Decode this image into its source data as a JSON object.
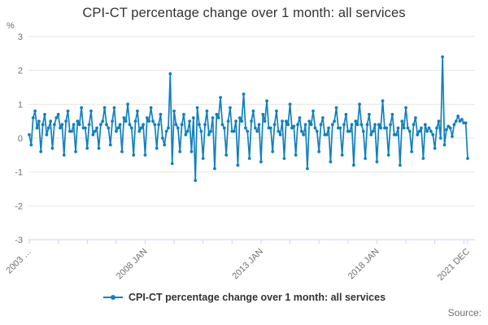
{
  "title": "CPI-CT percentage change over 1 month: all services",
  "y_axis": {
    "unit": "%",
    "tick_labels": [
      "3",
      "2",
      "1",
      "0",
      "-1",
      "-2",
      "-3"
    ]
  },
  "x_axis": {
    "visible_labels": [
      "2003 …",
      "2008 JAN",
      "2013 JAN",
      "2018 JAN",
      "2021 DEC"
    ]
  },
  "legend": {
    "label": "CPI-CT percentage change over 1 month: all services"
  },
  "footer": {
    "source_label": "Source:"
  },
  "colors": {
    "line": "#1180be",
    "grid": "#e6e6e6",
    "axis": "#ccd1ee",
    "axis_text": "#707070",
    "title_text": "#333333",
    "legend_text": "#333333",
    "background": "#ffffff"
  },
  "chart_data": {
    "type": "line",
    "title": "CPI-CT percentage change over 1 month: all services",
    "xlabel": "",
    "ylabel": "%",
    "ylim": [
      -3,
      3
    ],
    "y_tick_values": [
      3,
      2,
      1,
      0,
      -1,
      -2,
      -3
    ],
    "grid": "horizontal",
    "legend_position": "bottom",
    "x_start": "2003 JAN",
    "x_end": "2021 DEC",
    "x_frequency": "monthly",
    "x_tick_label_positions": [
      {
        "index": 0,
        "label": "2003 …"
      },
      {
        "index": 60,
        "label": "2008 JAN"
      },
      {
        "index": 120,
        "label": "2013 JAN"
      },
      {
        "index": 180,
        "label": "2018 JAN"
      },
      {
        "index": 227,
        "label": "2021 DEC"
      }
    ],
    "minor_tick_indices": [
      0,
      15,
      30,
      45,
      60,
      75,
      90,
      105,
      120,
      135,
      150,
      165,
      180,
      195,
      210,
      225,
      227
    ],
    "series": [
      {
        "name": "CPI-CT percentage change over 1 month: all services",
        "marker": "circle",
        "values": [
          0.1,
          -0.2,
          0.6,
          0.8,
          0.3,
          0.5,
          -0.4,
          0.4,
          0.7,
          0.1,
          0.3,
          0.5,
          -0.3,
          0.4,
          0.6,
          0.7,
          0.3,
          0.4,
          -0.5,
          0.5,
          0.8,
          0.2,
          0.2,
          0.4,
          -0.4,
          0.5,
          0.4,
          0.9,
          0.3,
          0.3,
          -0.3,
          0.4,
          0.8,
          0.1,
          0.2,
          0.3,
          -0.3,
          0.4,
          0.5,
          0.9,
          0.4,
          0.3,
          -0.2,
          0.5,
          0.9,
          0.2,
          0.3,
          0.4,
          -0.4,
          0.6,
          0.5,
          1.0,
          0.4,
          0.3,
          -0.5,
          0.5,
          0.8,
          0.2,
          0.3,
          0.4,
          -0.5,
          0.6,
          0.5,
          0.9,
          0.5,
          0.4,
          -0.3,
          0.4,
          0.7,
          0.0,
          -0.2,
          0.2,
          0.3,
          1.9,
          -0.75,
          0.8,
          0.4,
          0.3,
          -0.4,
          0.4,
          0.7,
          0.1,
          0.2,
          0.5,
          -0.4,
          0.6,
          -1.25,
          0.9,
          0.4,
          0.2,
          -0.6,
          0.4,
          0.8,
          0.1,
          0.2,
          0.6,
          -0.9,
          0.7,
          0.6,
          1.2,
          0.4,
          0.3,
          -0.5,
          0.5,
          0.9,
          0.2,
          0.2,
          0.5,
          -0.8,
          0.6,
          0.5,
          1.3,
          0.3,
          0.2,
          -0.6,
          0.5,
          0.8,
          0.3,
          0.2,
          0.4,
          -0.7,
          0.7,
          0.5,
          1.1,
          0.3,
          0.3,
          -0.4,
          0.4,
          0.8,
          0.2,
          0.1,
          0.5,
          -0.6,
          0.5,
          0.4,
          1.0,
          0.3,
          0.35,
          -0.5,
          0.4,
          0.6,
          0.2,
          0.1,
          0.4,
          -0.9,
          0.5,
          0.4,
          0.8,
          0.3,
          0.2,
          -0.4,
          0.4,
          0.6,
          0.1,
          0.1,
          0.3,
          -0.7,
          0.4,
          0.5,
          0.9,
          0.3,
          0.3,
          -0.5,
          0.4,
          0.7,
          0.2,
          0.2,
          0.4,
          -0.8,
          0.5,
          0.4,
          1.0,
          0.4,
          0.2,
          -0.6,
          0.4,
          0.7,
          0.1,
          0.2,
          0.4,
          -0.7,
          0.4,
          0.3,
          1.1,
          0.3,
          0.3,
          -0.5,
          0.4,
          0.7,
          0.1,
          0.1,
          0.3,
          -0.8,
          0.5,
          0.3,
          0.9,
          0.3,
          0.2,
          -0.4,
          0.4,
          0.6,
          0.1,
          0.2,
          0.3,
          -0.6,
          0.4,
          0.2,
          0.3,
          0.2,
          0.1,
          -0.3,
          0.3,
          0.5,
          0.0,
          2.4,
          -0.2,
          0.25,
          0.35,
          0.3,
          0.05,
          0.4,
          0.5,
          0.65,
          0.5,
          0.55,
          0.45,
          0.45,
          -0.6
        ]
      }
    ]
  }
}
